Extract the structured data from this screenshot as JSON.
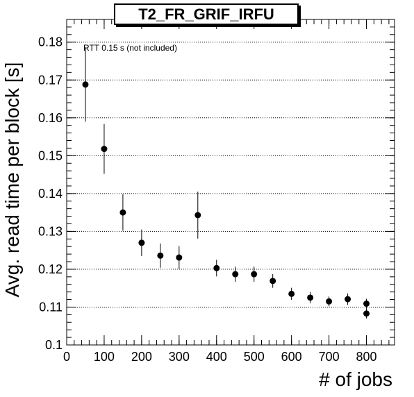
{
  "chart_data": {
    "type": "scatter",
    "title": "T2_FR_GRIF_IRFU",
    "xlabel": "# of jobs",
    "ylabel": "Avg. read time per block [s]",
    "annotation": "RTT 0.15 s (not included)",
    "xlim": [
      0,
      875
    ],
    "ylim": [
      0.1,
      0.186
    ],
    "grid": "horizontal-dotted",
    "x_ticks": [
      0,
      100,
      200,
      300,
      400,
      500,
      600,
      700,
      800
    ],
    "x_tick_labels": [
      "0",
      "100",
      "200",
      "300",
      "400",
      "500",
      "600",
      "700",
      "800"
    ],
    "y_ticks": [
      0.1,
      0.11,
      0.12,
      0.13,
      0.14,
      0.15,
      0.16,
      0.17,
      0.18
    ],
    "y_tick_labels": [
      "0.1",
      "0.11",
      "0.12",
      "0.13",
      "0.14",
      "0.15",
      "0.16",
      "0.17",
      "0.18"
    ],
    "points": [
      {
        "x": 50,
        "y": 0.1688,
        "err": 0.0098
      },
      {
        "x": 100,
        "y": 0.1518,
        "err": 0.0066
      },
      {
        "x": 150,
        "y": 0.135,
        "err": 0.0048
      },
      {
        "x": 200,
        "y": 0.127,
        "err": 0.0035
      },
      {
        "x": 250,
        "y": 0.1236,
        "err": 0.0032
      },
      {
        "x": 300,
        "y": 0.1231,
        "err": 0.003
      },
      {
        "x": 350,
        "y": 0.1343,
        "err": 0.0062
      },
      {
        "x": 400,
        "y": 0.1203,
        "err": 0.0022
      },
      {
        "x": 450,
        "y": 0.1187,
        "err": 0.002
      },
      {
        "x": 500,
        "y": 0.1187,
        "err": 0.002
      },
      {
        "x": 550,
        "y": 0.1169,
        "err": 0.0018
      },
      {
        "x": 600,
        "y": 0.1135,
        "err": 0.0016
      },
      {
        "x": 650,
        "y": 0.1125,
        "err": 0.0015
      },
      {
        "x": 700,
        "y": 0.1115,
        "err": 0.0013
      },
      {
        "x": 750,
        "y": 0.1121,
        "err": 0.0015
      },
      {
        "x": 800,
        "y": 0.1109,
        "err": 0.0013
      },
      {
        "x": 800,
        "y": 0.1083,
        "err": 0.0013
      }
    ]
  }
}
